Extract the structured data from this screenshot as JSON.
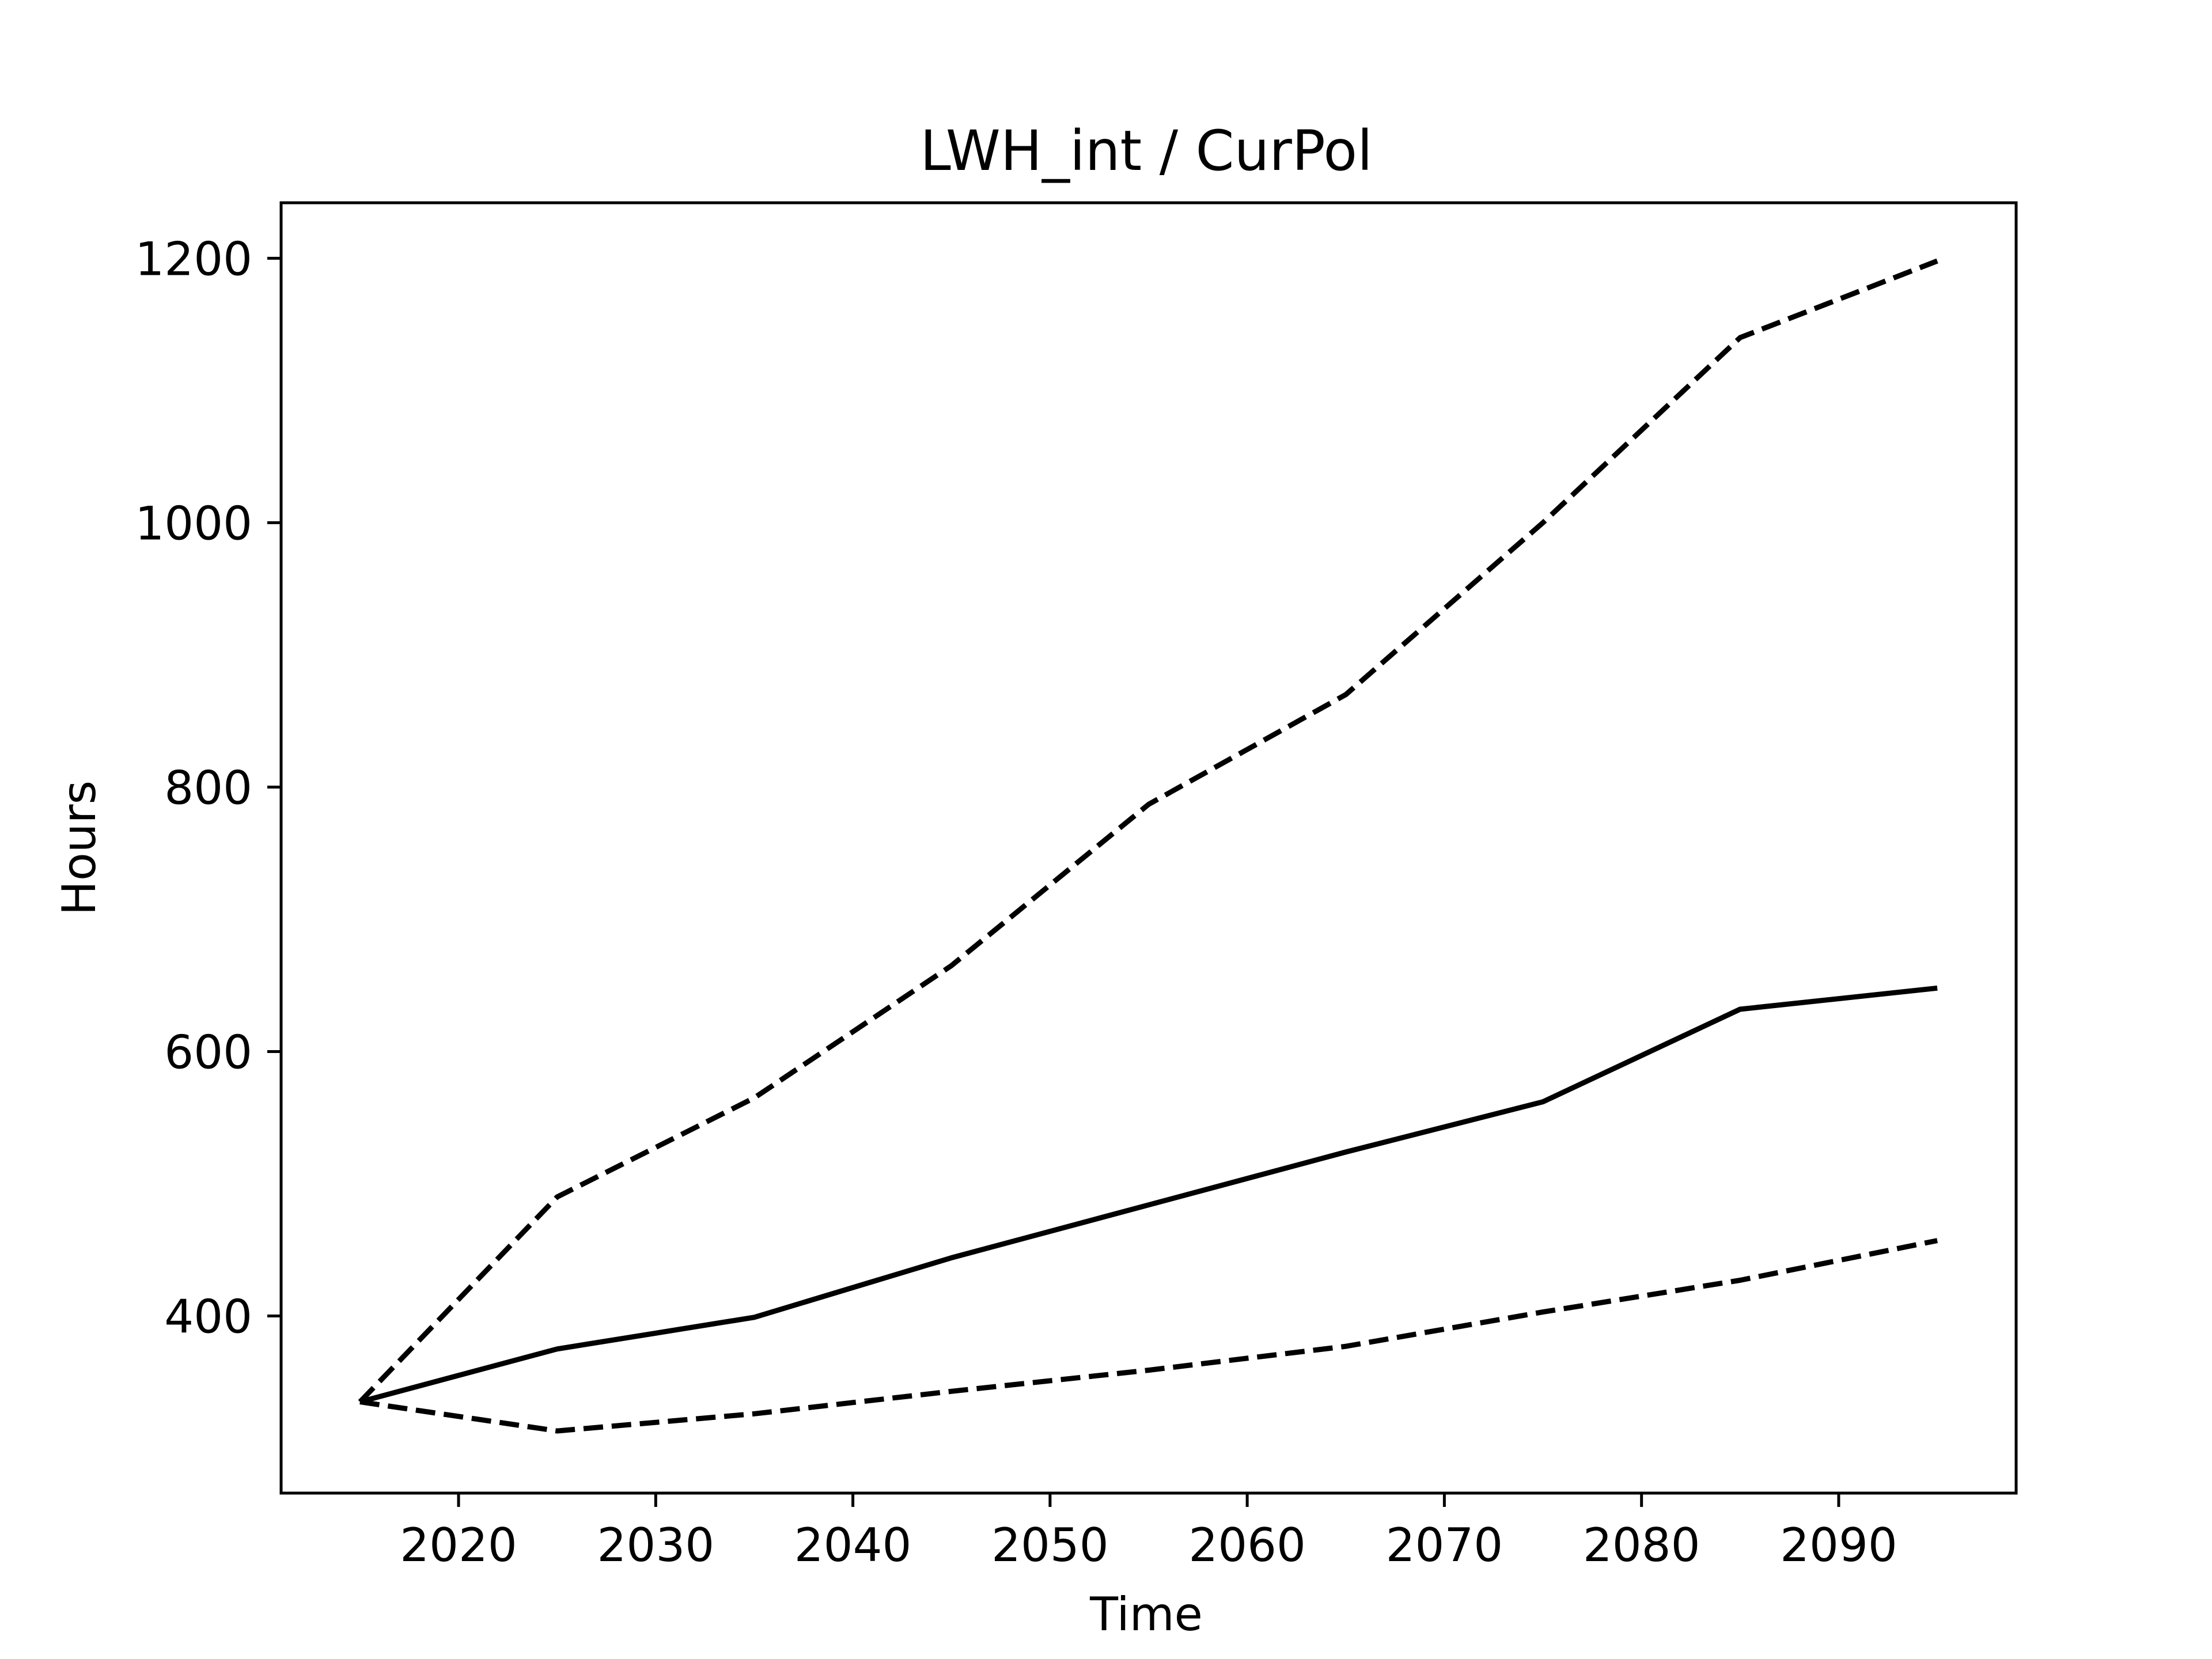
{
  "chart_data": {
    "type": "line",
    "title": "LWH_int / CurPol",
    "xlabel": "Time",
    "ylabel": "Hours",
    "xlim": [
      2011,
      2099
    ],
    "ylim": [
      266,
      1242
    ],
    "xticks": [
      2020,
      2030,
      2040,
      2050,
      2060,
      2070,
      2080,
      2090
    ],
    "yticks": [
      400,
      600,
      800,
      1000,
      1200
    ],
    "grid": false,
    "legend": "none",
    "x": [
      2015,
      2025,
      2035,
      2045,
      2055,
      2065,
      2075,
      2085,
      2095
    ],
    "series": [
      {
        "style": "dashed",
        "color": "#000000",
        "values": [
          335,
          490,
          565,
          665,
          787,
          870,
          1000,
          1140,
          1198
        ]
      },
      {
        "style": "solid",
        "color": "#000000",
        "values": [
          335,
          375,
          399,
          444,
          484,
          524,
          562,
          632,
          648
        ]
      },
      {
        "style": "dashed",
        "color": "#000000",
        "values": [
          335,
          313,
          326,
          343,
          359,
          377,
          403,
          427,
          457
        ]
      }
    ]
  }
}
